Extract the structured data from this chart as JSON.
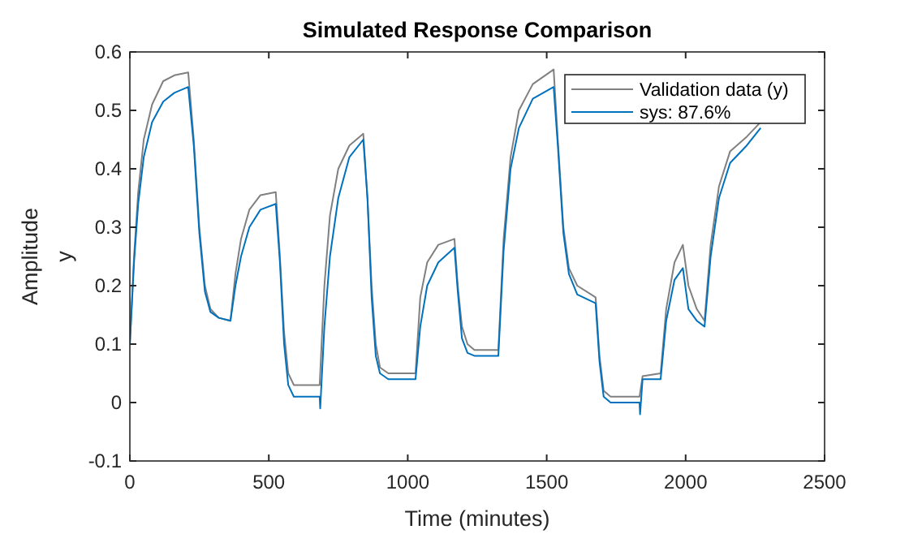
{
  "chart_data": {
    "type": "line",
    "title": "Simulated Response Comparison",
    "xlabel": "Time (minutes)",
    "ylabel": "Amplitude",
    "annotations": [
      "y"
    ],
    "xlim": [
      0,
      2500
    ],
    "xticks": [
      0,
      500,
      1000,
      1500,
      2000,
      2500
    ],
    "ylim": [
      -0.1,
      0.6
    ],
    "yticks": [
      -0.1,
      0,
      0.1,
      0.2,
      0.3,
      0.4,
      0.5,
      0.6
    ],
    "legend": "top right",
    "grid": false,
    "series": [
      {
        "name": "Validation data (y)",
        "color": "#808080",
        "x": [
          0,
          15,
          30,
          50,
          80,
          120,
          160,
          210,
          230,
          250,
          270,
          290,
          320,
          362,
          380,
          400,
          430,
          470,
          525,
          540,
          555,
          570,
          590,
          683,
          700,
          720,
          750,
          790,
          840,
          855,
          870,
          885,
          900,
          930,
          1028,
          1045,
          1070,
          1110,
          1168,
          1180,
          1195,
          1215,
          1240,
          1326,
          1345,
          1370,
          1400,
          1450,
          1525,
          1540,
          1560,
          1580,
          1610,
          1676,
          1690,
          1705,
          1730,
          1834,
          1845,
          1910,
          1930,
          1960,
          1990,
          2010,
          2040,
          2068,
          2090,
          2120,
          2160,
          2220,
          2270
        ],
        "values": [
          0.1,
          0.25,
          0.36,
          0.45,
          0.51,
          0.55,
          0.56,
          0.565,
          0.45,
          0.3,
          0.2,
          0.16,
          0.145,
          0.14,
          0.22,
          0.28,
          0.33,
          0.355,
          0.36,
          0.25,
          0.12,
          0.05,
          0.03,
          0.03,
          0.2,
          0.32,
          0.4,
          0.44,
          0.46,
          0.35,
          0.2,
          0.1,
          0.06,
          0.05,
          0.05,
          0.18,
          0.24,
          0.27,
          0.28,
          0.2,
          0.13,
          0.1,
          0.09,
          0.09,
          0.28,
          0.42,
          0.5,
          0.545,
          0.57,
          0.45,
          0.3,
          0.23,
          0.2,
          0.18,
          0.08,
          0.02,
          0.01,
          0.01,
          0.045,
          0.05,
          0.16,
          0.24,
          0.27,
          0.2,
          0.16,
          0.14,
          0.27,
          0.37,
          0.43,
          0.455,
          0.48
        ]
      },
      {
        "name": "sys: 87.6%",
        "color": "#0072bd",
        "x": [
          0,
          15,
          30,
          50,
          80,
          120,
          160,
          210,
          230,
          250,
          270,
          290,
          320,
          362,
          380,
          400,
          430,
          470,
          525,
          540,
          555,
          570,
          590,
          683,
          685,
          700,
          720,
          750,
          790,
          840,
          855,
          870,
          885,
          900,
          930,
          1028,
          1045,
          1070,
          1110,
          1168,
          1180,
          1195,
          1215,
          1240,
          1326,
          1345,
          1370,
          1400,
          1450,
          1525,
          1540,
          1560,
          1580,
          1610,
          1676,
          1690,
          1705,
          1730,
          1834,
          1836,
          1845,
          1910,
          1930,
          1960,
          1990,
          2010,
          2040,
          2068,
          2090,
          2120,
          2160,
          2220,
          2270
        ],
        "values": [
          0.1,
          0.24,
          0.34,
          0.42,
          0.48,
          0.515,
          0.53,
          0.54,
          0.44,
          0.29,
          0.19,
          0.155,
          0.145,
          0.14,
          0.2,
          0.25,
          0.3,
          0.33,
          0.34,
          0.24,
          0.1,
          0.03,
          0.01,
          0.01,
          -0.01,
          0.13,
          0.25,
          0.35,
          0.42,
          0.45,
          0.35,
          0.18,
          0.08,
          0.05,
          0.04,
          0.04,
          0.13,
          0.2,
          0.24,
          0.265,
          0.19,
          0.11,
          0.085,
          0.08,
          0.08,
          0.26,
          0.4,
          0.47,
          0.52,
          0.54,
          0.44,
          0.29,
          0.22,
          0.185,
          0.17,
          0.07,
          0.01,
          0.0,
          0.0,
          -0.02,
          0.04,
          0.04,
          0.14,
          0.21,
          0.23,
          0.16,
          0.14,
          0.13,
          0.25,
          0.35,
          0.41,
          0.44,
          0.47
        ]
      }
    ]
  }
}
